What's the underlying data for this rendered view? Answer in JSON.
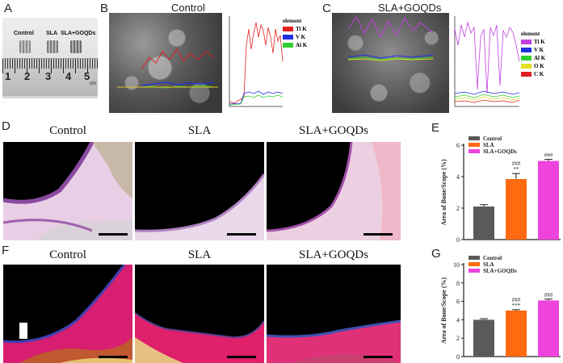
{
  "panel_labels": {
    "a": "A",
    "b": "B",
    "c": "C",
    "d": "D",
    "e": "E",
    "f": "F",
    "g": "G"
  },
  "panel_a": {
    "samples": [
      "Control",
      "SLA",
      "SLA+GOQDs"
    ],
    "ruler_numbers": [
      "1",
      "2",
      "3",
      "4",
      "5"
    ],
    "ruler_unit": "cm"
  },
  "panel_b": {
    "title": "Control",
    "legend_title": "element",
    "legend": [
      {
        "name": "Ti K",
        "color": "#e02020"
      },
      {
        "name": "V K",
        "color": "#2030e0"
      },
      {
        "name": "Al K",
        "color": "#30d030"
      }
    ]
  },
  "panel_c": {
    "title": "SLA+GOQDs",
    "legend_title": "element",
    "legend": [
      {
        "name": "Ti K",
        "color": "#c040e0"
      },
      {
        "name": "V K",
        "color": "#2030e0"
      },
      {
        "name": "Al K",
        "color": "#30d030"
      },
      {
        "name": "O K",
        "color": "#e0e020"
      },
      {
        "name": "C K",
        "color": "#e02020"
      }
    ]
  },
  "row_d": {
    "captions": [
      "Control",
      "SLA",
      "SLA+GOQDs"
    ]
  },
  "row_f": {
    "captions": [
      "Control",
      "SLA",
      "SLA+GOQDs"
    ]
  },
  "chart_data": [
    {
      "type": "bar",
      "panel": "E",
      "categories": [
        "Control",
        "SLA",
        "SLA+GOQDs"
      ],
      "values": [
        2.1,
        3.85,
        5.0
      ],
      "errors": [
        0.12,
        0.35,
        0.1
      ],
      "colors": [
        "#5a5a5a",
        "#ff6a10",
        "#ee44dd"
      ],
      "annotations": [
        "",
        "###\n**",
        "###"
      ],
      "ylabel": "Area of Bone/Scope (%)",
      "ylim": [
        0,
        6
      ],
      "yticks": [
        "0",
        "2",
        "4",
        "6"
      ],
      "legend": [
        "Control",
        "SLA",
        "SLA+GOQDs"
      ]
    },
    {
      "type": "bar",
      "panel": "G",
      "categories": [
        "Control",
        "SLA",
        "SLA+GOQDs"
      ],
      "values": [
        4.0,
        5.0,
        6.1
      ],
      "errors": [
        0.12,
        0.1,
        0.15
      ],
      "colors": [
        "#5a5a5a",
        "#ff6a10",
        "#ee44dd"
      ],
      "annotations": [
        "",
        "###\n***",
        "###"
      ],
      "ylabel": "Area of Bone/Scope (%)",
      "ylim": [
        0,
        10
      ],
      "yticks": [
        "0",
        "2",
        "4",
        "6",
        "8",
        "10"
      ],
      "legend": [
        "Control",
        "SLA",
        "SLA+GOQDs"
      ]
    }
  ]
}
